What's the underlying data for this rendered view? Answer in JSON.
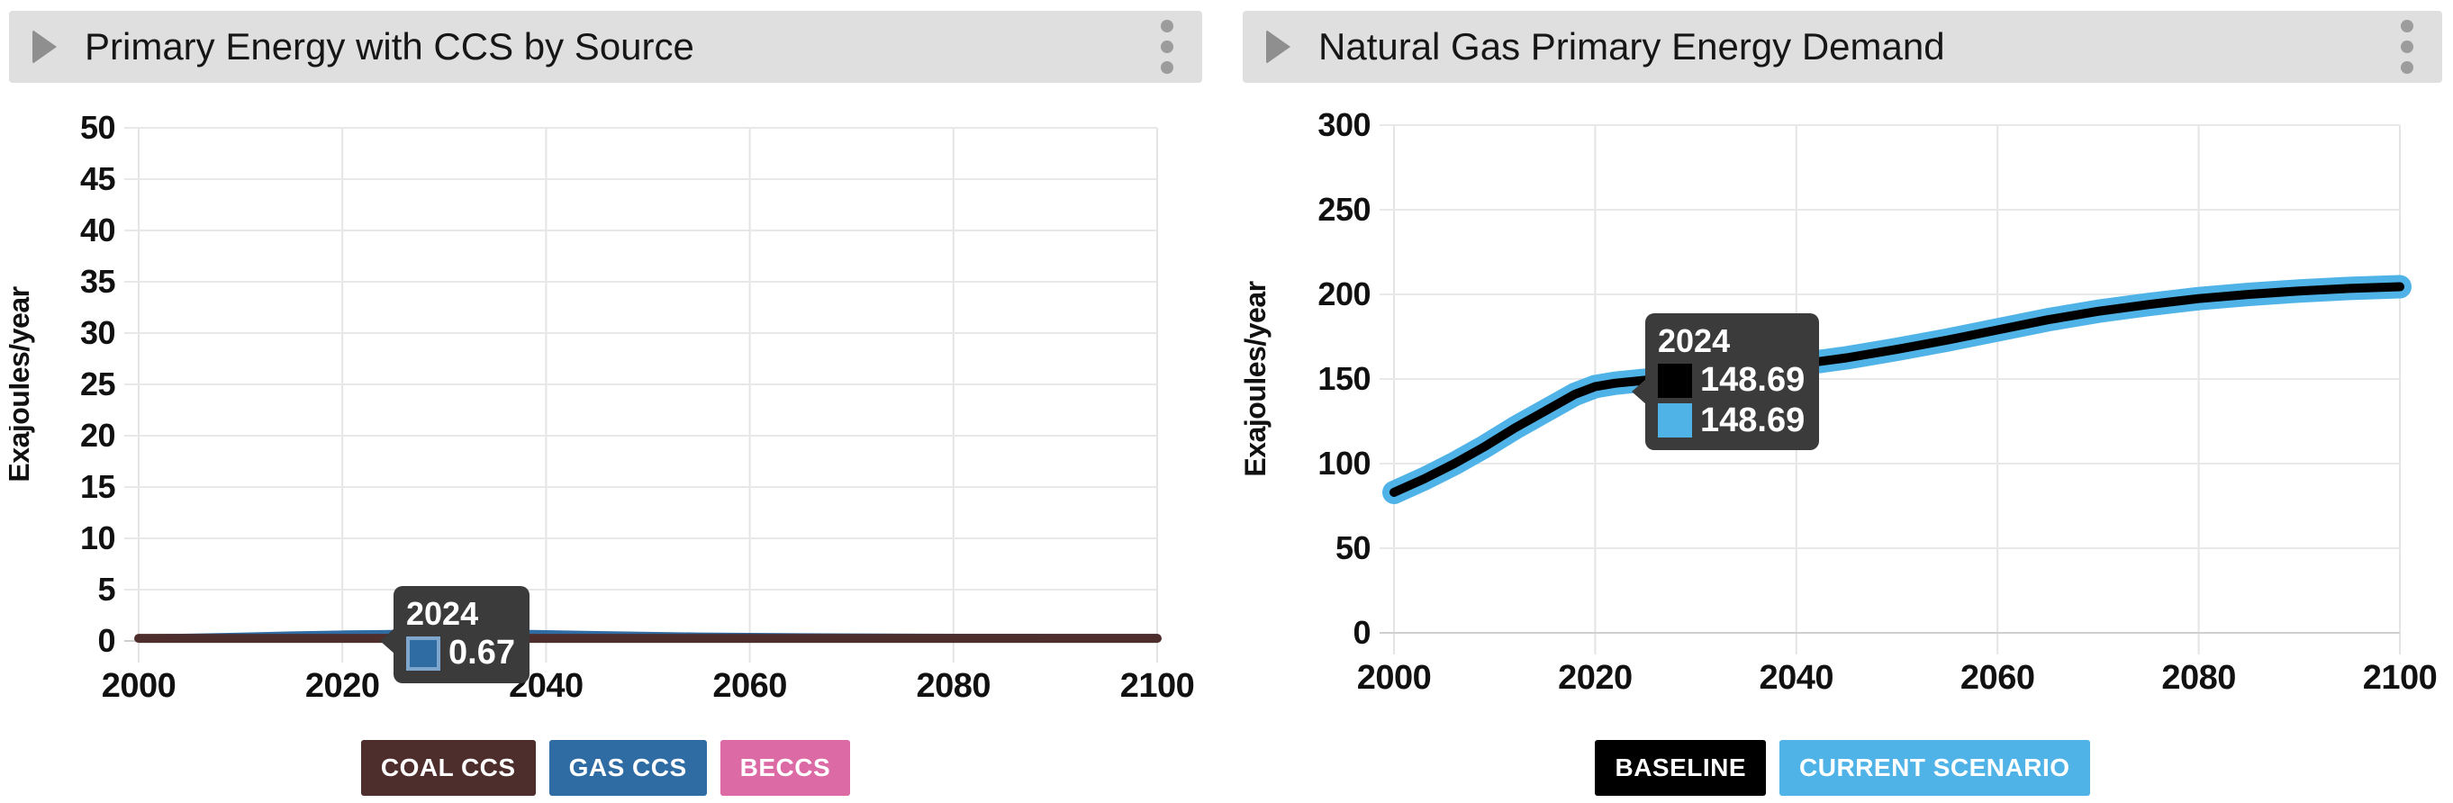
{
  "left_panel": {
    "header": {
      "title": "Primary Energy with CCS by Source",
      "expand_icon": "triangle-right-icon",
      "menu_icon": "kebab-vertical-icon"
    },
    "tooltip": {
      "year": "2024",
      "rows": [
        {
          "series": "GAS CCS",
          "swatch_color": "#2e6ca3",
          "value": "0.67"
        }
      ]
    },
    "legend": [
      {
        "label": "COAL CCS",
        "color": "#4e2e2c"
      },
      {
        "label": "GAS CCS",
        "color": "#2e6ca3"
      },
      {
        "label": "BECCS",
        "color": "#dc6aa4"
      }
    ]
  },
  "right_panel": {
    "header": {
      "title": "Natural Gas Primary Energy Demand",
      "expand_icon": "triangle-right-icon",
      "menu_icon": "kebab-vertical-icon"
    },
    "tooltip": {
      "year": "2024",
      "rows": [
        {
          "series": "BASELINE",
          "swatch_color": "#000000",
          "value": "148.69"
        },
        {
          "series": "CURRENT SCENARIO",
          "swatch_color": "#4fb3e8",
          "value": "148.69"
        }
      ]
    },
    "legend": [
      {
        "label": "BASELINE",
        "color": "#000000"
      },
      {
        "label": "CURRENT SCENARIO",
        "color": "#4fb3e8"
      }
    ]
  },
  "chart_data": [
    {
      "type": "line",
      "title": "Primary Energy with CCS by Source",
      "xlabel": "",
      "ylabel": "Exajoules/year",
      "xlim": [
        2000,
        2100
      ],
      "ylim": [
        0,
        50
      ],
      "xticks": [
        2000,
        2020,
        2040,
        2060,
        2080,
        2100
      ],
      "yticks": [
        0,
        5,
        10,
        15,
        20,
        25,
        30,
        35,
        40,
        45,
        50
      ],
      "grid": true,
      "legend_position": "bottom",
      "x": [
        2000,
        2005,
        2010,
        2015,
        2020,
        2024,
        2028,
        2032,
        2036,
        2040,
        2045,
        2050,
        2055,
        2060,
        2070,
        2080,
        2090,
        2100
      ],
      "series": [
        {
          "name": "BECCS",
          "color": "#dc6aa4",
          "width": 8,
          "values": [
            0.2,
            0.2,
            0.2,
            0.2,
            0.2,
            0.2,
            0.2,
            0.2,
            0.2,
            0.2,
            0.2,
            0.2,
            0.2,
            0.2,
            0.2,
            0.2,
            0.2,
            0.2
          ]
        },
        {
          "name": "GAS CCS",
          "color": "#2e6ca3",
          "width": 9,
          "values": [
            0.25,
            0.32,
            0.42,
            0.54,
            0.63,
            0.67,
            0.74,
            0.76,
            0.72,
            0.66,
            0.57,
            0.49,
            0.43,
            0.39,
            0.34,
            0.31,
            0.3,
            0.3
          ]
        },
        {
          "name": "COAL CCS",
          "color": "#4e2e2c",
          "width": 10,
          "values": [
            0.25,
            0.25,
            0.25,
            0.25,
            0.25,
            0.25,
            0.25,
            0.25,
            0.25,
            0.25,
            0.25,
            0.25,
            0.25,
            0.25,
            0.25,
            0.25,
            0.25,
            0.25
          ]
        }
      ],
      "tooltip": {
        "x": 2024,
        "label": "2024",
        "values": [
          {
            "series": "GAS CCS",
            "value": 0.67
          }
        ]
      }
    },
    {
      "type": "line",
      "title": "Natural Gas Primary Energy Demand",
      "xlabel": "",
      "ylabel": "Exajoules/year",
      "xlim": [
        2000,
        2100
      ],
      "ylim": [
        0,
        300
      ],
      "xticks": [
        2000,
        2020,
        2040,
        2060,
        2080,
        2100
      ],
      "yticks": [
        0,
        50,
        100,
        150,
        200,
        250,
        300
      ],
      "grid": true,
      "legend_position": "bottom",
      "x": [
        2000,
        2003,
        2006,
        2009,
        2012,
        2015,
        2018,
        2020,
        2022,
        2024,
        2027,
        2030,
        2035,
        2040,
        2045,
        2050,
        2055,
        2060,
        2065,
        2070,
        2075,
        2080,
        2085,
        2090,
        2095,
        2100
      ],
      "series": [
        {
          "name": "CURRENT SCENARIO",
          "color": "#4fb3e8",
          "width": 26,
          "values": [
            83,
            91,
            100,
            110,
            121,
            131,
            141,
            145.5,
            147.5,
            148.69,
            150.5,
            152,
            155,
            158.5,
            162.5,
            167.5,
            173,
            179,
            185,
            190,
            194,
            197.5,
            200,
            202,
            203.5,
            204.5
          ]
        },
        {
          "name": "BASELINE",
          "color": "#000000",
          "width": 10,
          "values": [
            83,
            91,
            100,
            110,
            121,
            131,
            141,
            145.5,
            147.5,
            148.69,
            150.5,
            152,
            155,
            158.5,
            162.5,
            167.5,
            173,
            179,
            185,
            190,
            194,
            197.5,
            200,
            202,
            203.5,
            204.5
          ]
        }
      ],
      "tooltip": {
        "x": 2024,
        "label": "2024",
        "values": [
          {
            "series": "BASELINE",
            "value": 148.69
          },
          {
            "series": "CURRENT SCENARIO",
            "value": 148.69
          }
        ]
      }
    }
  ]
}
